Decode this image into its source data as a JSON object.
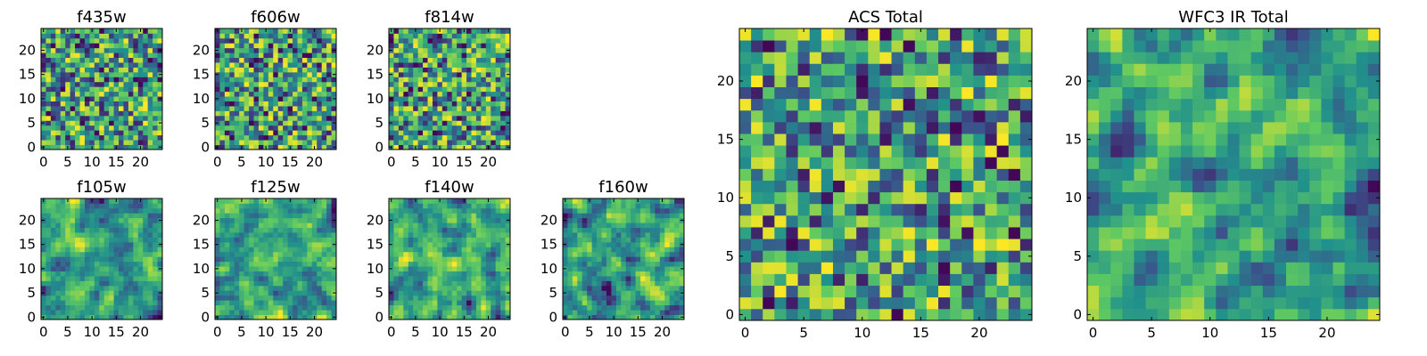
{
  "figure": {
    "colormap": "viridis",
    "colors": [
      "#440154",
      "#3b528b",
      "#21918c",
      "#5ec962",
      "#fde725"
    ]
  },
  "chart_data": [
    {
      "type": "heatmap",
      "title": "f435w",
      "rows": 25,
      "cols": 25,
      "x_ticks": [
        0,
        5,
        10,
        15,
        20
      ],
      "y_ticks": [
        0,
        5,
        10,
        15,
        20
      ],
      "xlim": [
        -0.5,
        24.5
      ],
      "ylim": [
        -0.5,
        24.5
      ],
      "origin": "lower",
      "seed": 11,
      "smooth": 0,
      "bias": 0.62,
      "colormap": "viridis"
    },
    {
      "type": "heatmap",
      "title": "f606w",
      "rows": 25,
      "cols": 25,
      "x_ticks": [
        0,
        5,
        10,
        15,
        20
      ],
      "y_ticks": [
        0,
        5,
        10,
        15,
        20
      ],
      "xlim": [
        -0.5,
        24.5
      ],
      "ylim": [
        -0.5,
        24.5
      ],
      "origin": "lower",
      "seed": 23,
      "smooth": 0,
      "bias": 0.6,
      "colormap": "viridis"
    },
    {
      "type": "heatmap",
      "title": "f814w",
      "rows": 25,
      "cols": 25,
      "x_ticks": [
        0,
        5,
        10,
        15,
        20
      ],
      "y_ticks": [
        0,
        5,
        10,
        15,
        20
      ],
      "xlim": [
        -0.5,
        24.5
      ],
      "ylim": [
        -0.5,
        24.5
      ],
      "origin": "lower",
      "seed": 37,
      "smooth": 0,
      "bias": 0.6,
      "colormap": "viridis"
    },
    {
      "type": "heatmap",
      "title": "f105w",
      "rows": 25,
      "cols": 25,
      "x_ticks": [
        0,
        5,
        10,
        15,
        20
      ],
      "y_ticks": [
        0,
        5,
        10,
        15,
        20
      ],
      "xlim": [
        -0.5,
        24.5
      ],
      "ylim": [
        -0.5,
        24.5
      ],
      "origin": "lower",
      "seed": 41,
      "smooth": 1,
      "bias": 0.6,
      "colormap": "viridis"
    },
    {
      "type": "heatmap",
      "title": "f125w",
      "rows": 25,
      "cols": 25,
      "x_ticks": [
        0,
        5,
        10,
        15,
        20
      ],
      "y_ticks": [
        0,
        5,
        10,
        15,
        20
      ],
      "xlim": [
        -0.5,
        24.5
      ],
      "ylim": [
        -0.5,
        24.5
      ],
      "origin": "lower",
      "seed": 53,
      "smooth": 1,
      "bias": 0.58,
      "colormap": "viridis"
    },
    {
      "type": "heatmap",
      "title": "f140w",
      "rows": 25,
      "cols": 25,
      "x_ticks": [
        0,
        5,
        10,
        15,
        20
      ],
      "y_ticks": [
        0,
        5,
        10,
        15,
        20
      ],
      "xlim": [
        -0.5,
        24.5
      ],
      "ylim": [
        -0.5,
        24.5
      ],
      "origin": "lower",
      "seed": 67,
      "smooth": 1,
      "bias": 0.58,
      "colormap": "viridis"
    },
    {
      "type": "heatmap",
      "title": "f160w",
      "rows": 25,
      "cols": 25,
      "x_ticks": [
        0,
        5,
        10,
        15,
        20
      ],
      "y_ticks": [
        0,
        5,
        10,
        15,
        20
      ],
      "xlim": [
        -0.5,
        24.5
      ],
      "ylim": [
        -0.5,
        24.5
      ],
      "origin": "lower",
      "seed": 79,
      "smooth": 1,
      "bias": 0.58,
      "colormap": "viridis"
    },
    {
      "type": "heatmap",
      "title": "ACS Total",
      "rows": 25,
      "cols": 25,
      "x_ticks": [
        0,
        5,
        10,
        15,
        20
      ],
      "y_ticks": [
        0,
        5,
        10,
        15,
        20
      ],
      "xlim": [
        -0.5,
        24.5
      ],
      "ylim": [
        -0.5,
        24.5
      ],
      "origin": "lower",
      "seed": 97,
      "smooth": 0,
      "bias": 0.62,
      "colormap": "viridis"
    },
    {
      "type": "heatmap",
      "title": "WFC3 IR Total",
      "rows": 25,
      "cols": 25,
      "x_ticks": [
        0,
        5,
        10,
        15,
        20
      ],
      "y_ticks": [
        0,
        5,
        10,
        15,
        20
      ],
      "xlim": [
        -0.5,
        24.5
      ],
      "ylim": [
        -0.5,
        24.5
      ],
      "origin": "lower",
      "seed": 113,
      "smooth": 1,
      "bias": 0.56,
      "colormap": "viridis"
    }
  ]
}
